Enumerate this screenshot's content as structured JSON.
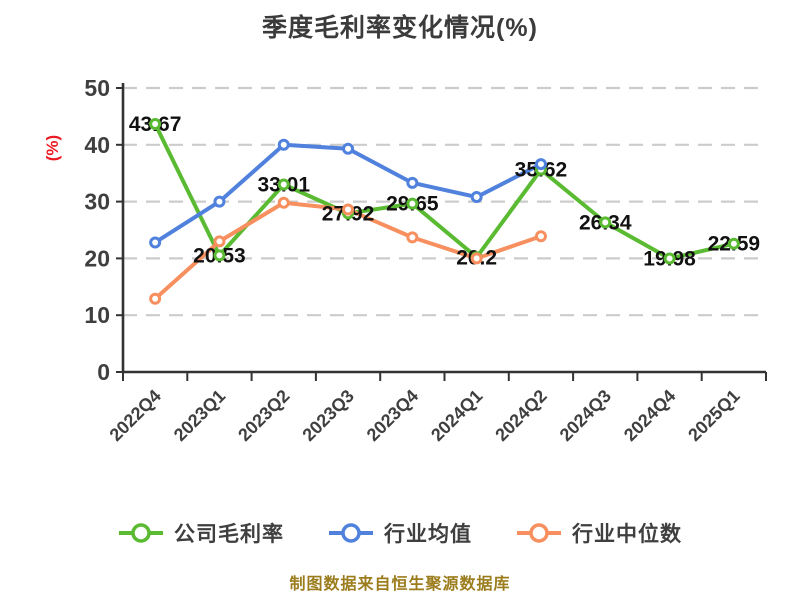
{
  "title": "季度毛利率变化情况(%)",
  "y_axis_label": "(%)",
  "caption": "制图数据来自恒生聚源数据库",
  "colors": {
    "company": "#5abb32",
    "industry_avg": "#4f81dd",
    "industry_median": "#f78f5f",
    "grid": "#cccccc",
    "axis": "#333333",
    "tick_text": "#3f3f3f",
    "value_label_text": "#111111",
    "title_text": "#3b3b3b",
    "y_unit_text": "#ec1c24",
    "caption_text": "#9c7d1e"
  },
  "chart_data": {
    "type": "line",
    "title": "季度毛利率变化情况(%)",
    "xlabel": "",
    "ylabel": "(%)",
    "ylim": [
      0,
      50
    ],
    "yticks": [
      0,
      10,
      20,
      30,
      40,
      50
    ],
    "grid": "horizontal-dashed",
    "legend_position": "bottom",
    "categories": [
      "2022Q4",
      "2023Q1",
      "2023Q2",
      "2023Q3",
      "2023Q4",
      "2024Q1",
      "2024Q2",
      "2024Q3",
      "2024Q4",
      "2025Q1"
    ],
    "series": [
      {
        "name": "公司毛利率",
        "color_key": "company",
        "labels_shown": true,
        "values": [
          43.67,
          20.53,
          33.01,
          27.92,
          29.65,
          20.2,
          35.62,
          26.34,
          19.98,
          22.59
        ]
      },
      {
        "name": "行业均值",
        "color_key": "industry_avg",
        "labels_shown": false,
        "values": [
          22.8,
          30.0,
          40.0,
          39.3,
          33.3,
          30.8,
          36.6,
          null,
          null,
          null
        ]
      },
      {
        "name": "行业中位数",
        "color_key": "industry_median",
        "labels_shown": false,
        "values": [
          12.9,
          23.0,
          29.8,
          28.6,
          23.7,
          20.0,
          23.9,
          null,
          null,
          null
        ]
      }
    ]
  }
}
